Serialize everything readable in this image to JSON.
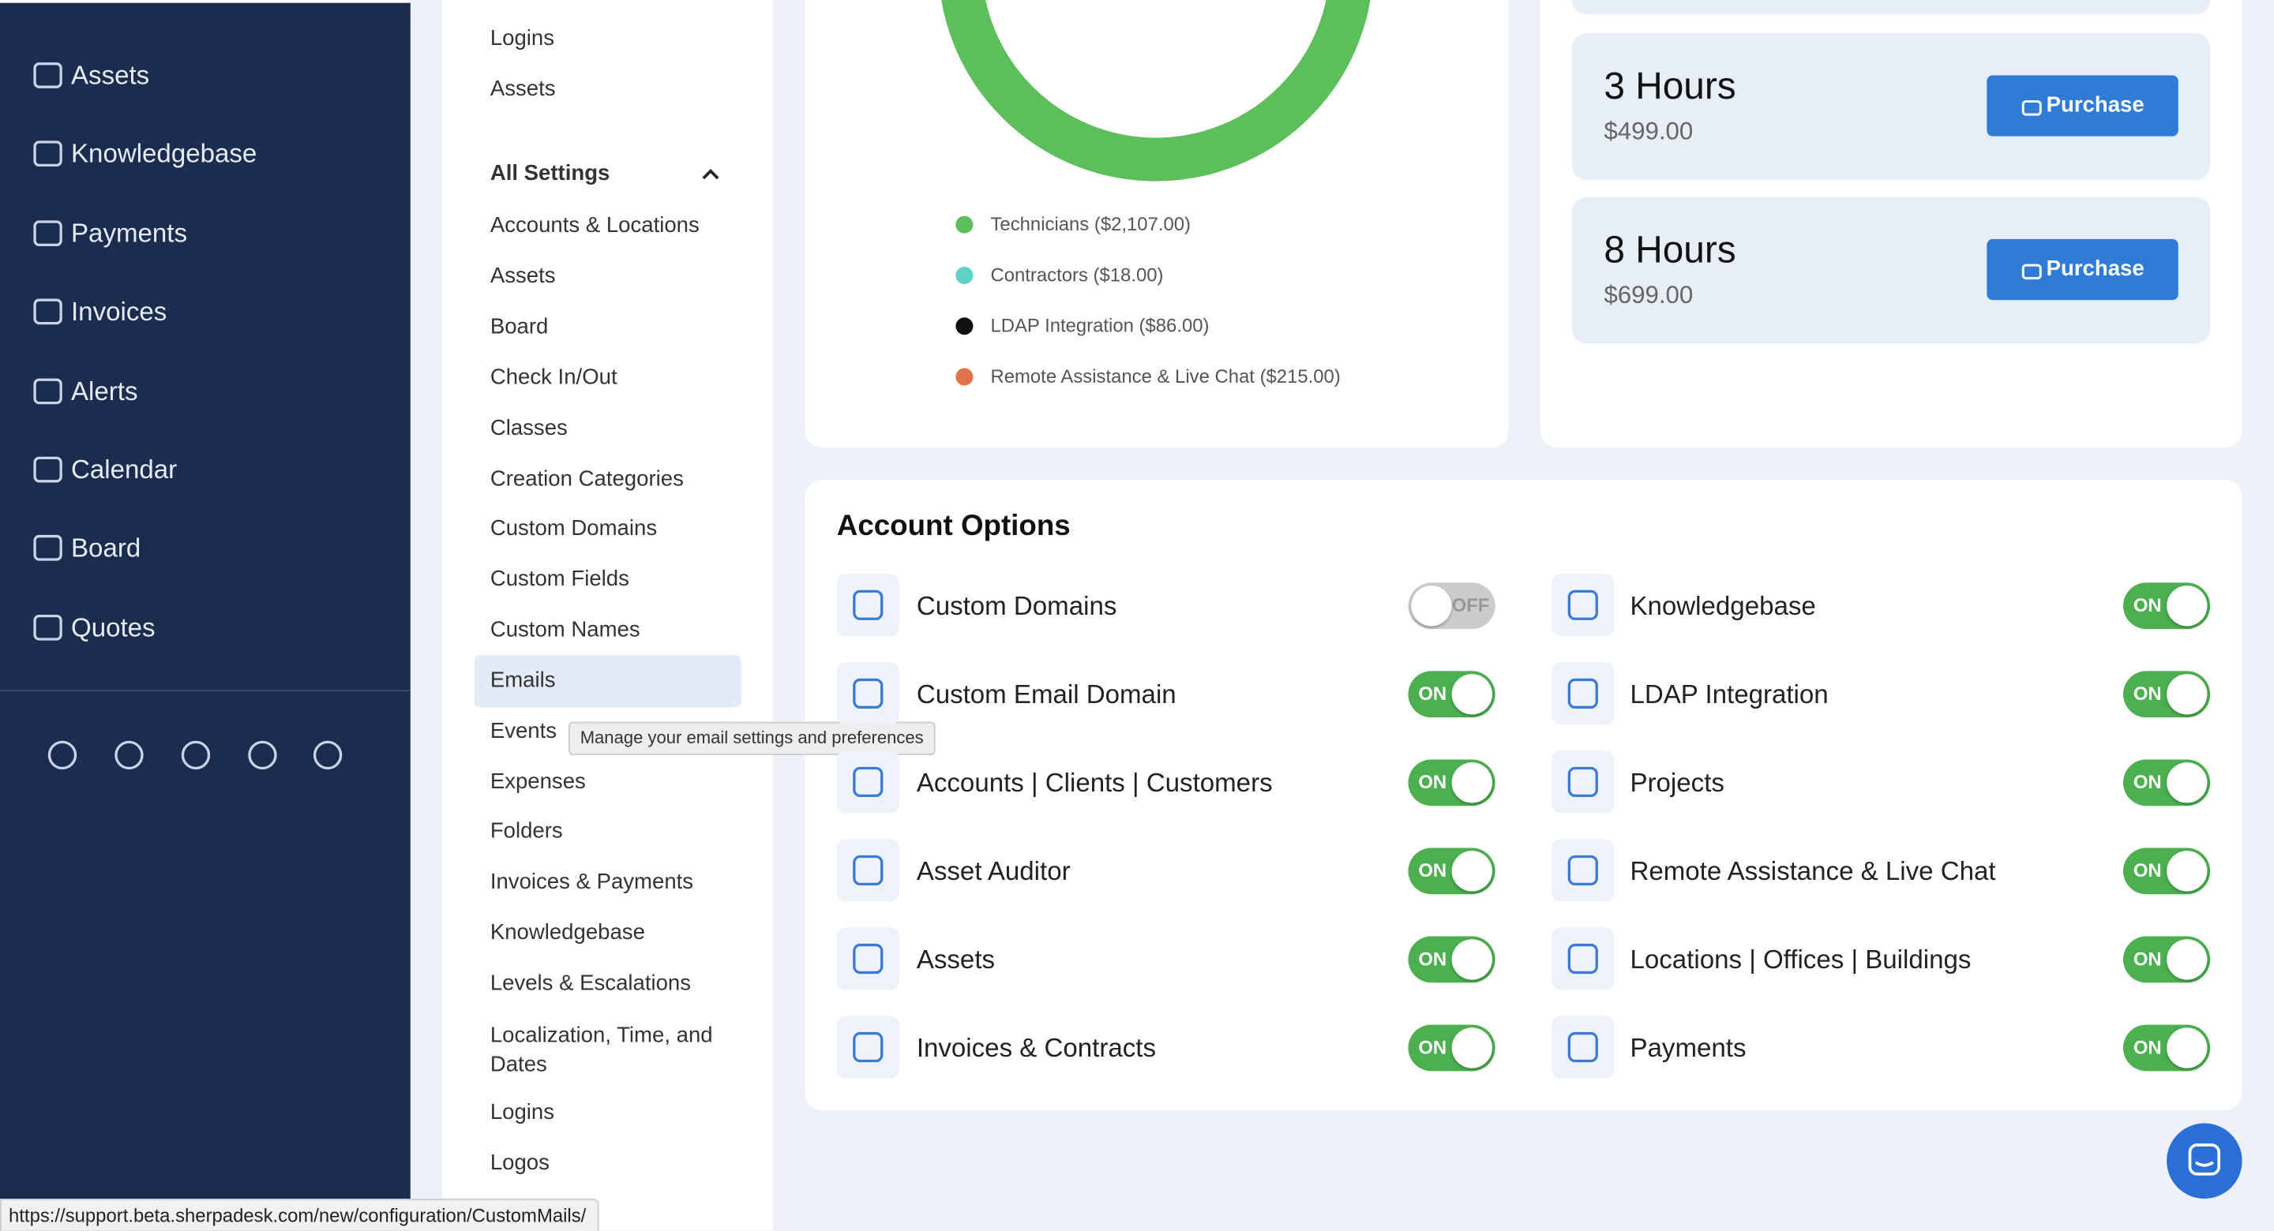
{
  "sidebar": {
    "nav": [
      "Assets",
      "Knowledgebase",
      "Payments",
      "Invoices",
      "Alerts",
      "Calendar",
      "Board",
      "Quotes"
    ]
  },
  "settings_menu": {
    "top_links": [
      "Logins",
      "Assets"
    ],
    "section_title": "All Settings",
    "items": [
      "Accounts & Locations",
      "Assets",
      "Board",
      "Check In/Out",
      "Classes",
      "Creation Categories",
      "Custom Domains",
      "Custom Fields",
      "Custom Names",
      "Emails",
      "Events",
      "Expenses",
      "Folders",
      "Invoices & Payments",
      "Knowledgebase",
      "Levels & Escalations",
      "Localization, Time, and Dates",
      "Logins",
      "Logos"
    ]
  },
  "tooltip": "Manage your email settings and preferences",
  "legend": [
    {
      "label": "Technicians ($2,107.00)",
      "color": "#5cbf5c"
    },
    {
      "label": "Contractors ($18.00)",
      "color": "#5fd3c8"
    },
    {
      "label": "LDAP Integration ($86.00)",
      "color": "#111111"
    },
    {
      "label": "Remote Assistance & Live Chat ($215.00)",
      "color": "#e0734a"
    }
  ],
  "packages": [
    {
      "title": "3 Hours",
      "price": "$499.00",
      "button": "Purchase"
    },
    {
      "title": "8 Hours",
      "price": "$699.00",
      "button": "Purchase"
    }
  ],
  "account_options": {
    "title": "Account Options",
    "left": [
      {
        "label": "Custom Domains",
        "state": "OFF"
      },
      {
        "label": "Custom Email Domain",
        "state": "ON"
      },
      {
        "label": "Accounts | Clients | Customers",
        "state": "ON"
      },
      {
        "label": "Asset Auditor",
        "state": "ON"
      },
      {
        "label": "Assets",
        "state": "ON"
      },
      {
        "label": "Invoices & Contracts",
        "state": "ON"
      }
    ],
    "right": [
      {
        "label": "Knowledgebase",
        "state": "ON"
      },
      {
        "label": "LDAP Integration",
        "state": "ON"
      },
      {
        "label": "Projects",
        "state": "ON"
      },
      {
        "label": "Remote Assistance & Live Chat",
        "state": "ON"
      },
      {
        "label": "Locations | Offices | Buildings",
        "state": "ON"
      },
      {
        "label": "Payments",
        "state": "ON"
      }
    ]
  },
  "status_url": "https://support.beta.sherpadesk.com/new/configuration/CustomMails/"
}
